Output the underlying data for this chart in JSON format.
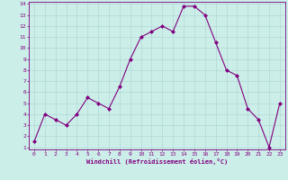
{
  "x": [
    0,
    1,
    2,
    3,
    4,
    5,
    6,
    7,
    8,
    9,
    10,
    11,
    12,
    13,
    14,
    15,
    16,
    17,
    18,
    19,
    20,
    21,
    22,
    23
  ],
  "y": [
    1.5,
    4.0,
    3.5,
    3.0,
    4.0,
    5.5,
    5.0,
    4.5,
    6.5,
    9.0,
    11.0,
    11.5,
    12.0,
    11.5,
    13.8,
    13.8,
    13.0,
    10.5,
    8.0,
    7.5,
    4.5,
    3.5,
    1.0,
    5.0
  ],
  "line_color": "#800080",
  "marker": "D",
  "marker_size": 2,
  "bg_color": "#cceee8",
  "grid_color": "#b0d8d8",
  "xlabel": "Windchill (Refroidissement éolien,°C)",
  "tick_color": "#800080",
  "spine_color": "#800080",
  "xlim": [
    -0.5,
    23.5
  ],
  "ylim": [
    0.8,
    14.2
  ],
  "yticks": [
    1,
    2,
    3,
    4,
    5,
    6,
    7,
    8,
    9,
    10,
    11,
    12,
    13,
    14
  ],
  "xticks": [
    0,
    1,
    2,
    3,
    4,
    5,
    6,
    7,
    8,
    9,
    10,
    11,
    12,
    13,
    14,
    15,
    16,
    17,
    18,
    19,
    20,
    21,
    22,
    23
  ]
}
